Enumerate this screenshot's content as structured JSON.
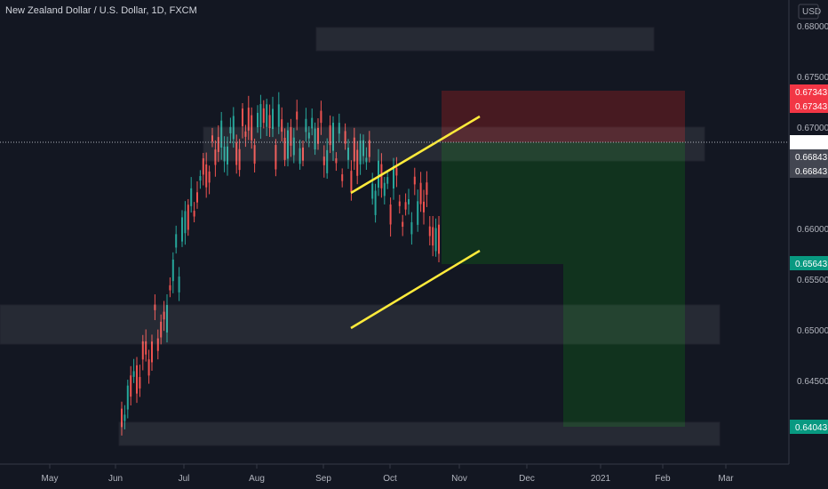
{
  "title": "New Zealand Dollar / U.S. Dollar, 1D, FXCM",
  "chart_data": {
    "type": "candlestick",
    "currency": "USD",
    "y_ticks": [
      "0.68000",
      "0.67500",
      "0.67000",
      "0.66000",
      "0.65500",
      "0.65000",
      "0.64500"
    ],
    "x_ticks": [
      "May",
      "Jun",
      "Jul",
      "Aug",
      "Sep",
      "Oct",
      "Nov",
      "Dec",
      "2021",
      "Feb",
      "Mar"
    ],
    "price_badges": [
      {
        "label": "0.67343",
        "color": "#f23645"
      },
      {
        "label": "0.67343",
        "color": "#f23645"
      },
      {
        "label": "0.66843",
        "color": "#ffffff"
      },
      {
        "label": "0.66843",
        "color": "#434651"
      },
      {
        "label": "0.66843",
        "color": "#434651"
      },
      {
        "label": "0.65643",
        "color": "#089981"
      },
      {
        "label": "0.64043",
        "color": "#089981"
      }
    ],
    "colors": {
      "up": "#26a69a",
      "down": "#ef5350",
      "trendline": "#ffeb3b",
      "stop_zone": "#4a1a22",
      "target_zone": "#11351f",
      "box": "#2a2e39"
    }
  }
}
